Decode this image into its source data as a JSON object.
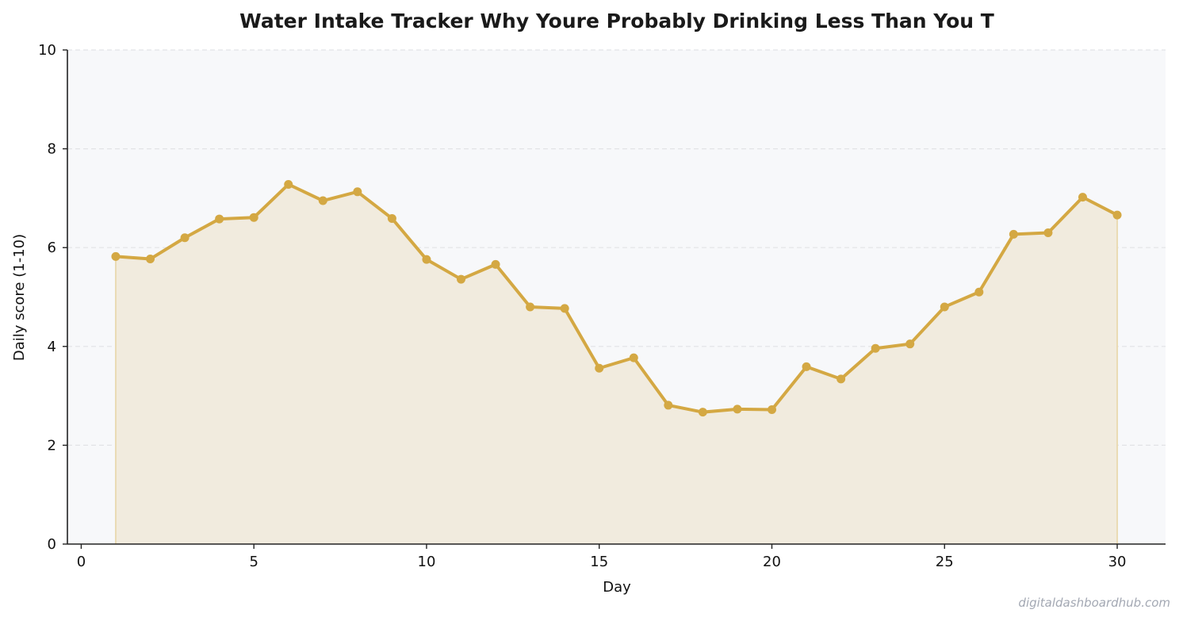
{
  "chart_data": {
    "type": "area",
    "title": "Water Intake Tracker  Why Youre Probably Drinking Less Than You T",
    "xlabel": "Day",
    "ylabel": "Daily score (1-10)",
    "xlim": [
      -0.4,
      31.4
    ],
    "ylim": [
      0,
      10
    ],
    "x_ticks": [
      0,
      5,
      10,
      15,
      20,
      25,
      30
    ],
    "y_ticks": [
      0,
      2,
      4,
      6,
      8,
      10
    ],
    "grid": "horizontal-dashed",
    "legend": "none",
    "series": [
      {
        "x": [
          1,
          2,
          3,
          4,
          5,
          6,
          7,
          8,
          9,
          10,
          11,
          12,
          13,
          14,
          15,
          16,
          17,
          18,
          19,
          20,
          21,
          22,
          23,
          24,
          25,
          26,
          27,
          28,
          29,
          30
        ],
        "values": [
          5.82,
          5.77,
          6.2,
          6.58,
          6.61,
          7.28,
          6.95,
          7.13,
          6.59,
          5.76,
          5.36,
          5.66,
          4.8,
          4.77,
          3.56,
          3.77,
          2.81,
          2.67,
          2.73,
          2.72,
          3.59,
          3.34,
          3.96,
          4.05,
          4.8,
          5.1,
          6.27,
          6.3,
          7.02,
          6.66
        ]
      }
    ],
    "colors": {
      "line": "#d4a843",
      "fill": "#f1ebde",
      "plot_background": "#f7f8fa",
      "grid": "#e2e3e6",
      "axis": "#222222"
    }
  },
  "watermark": "digitaldashboardhub.com"
}
